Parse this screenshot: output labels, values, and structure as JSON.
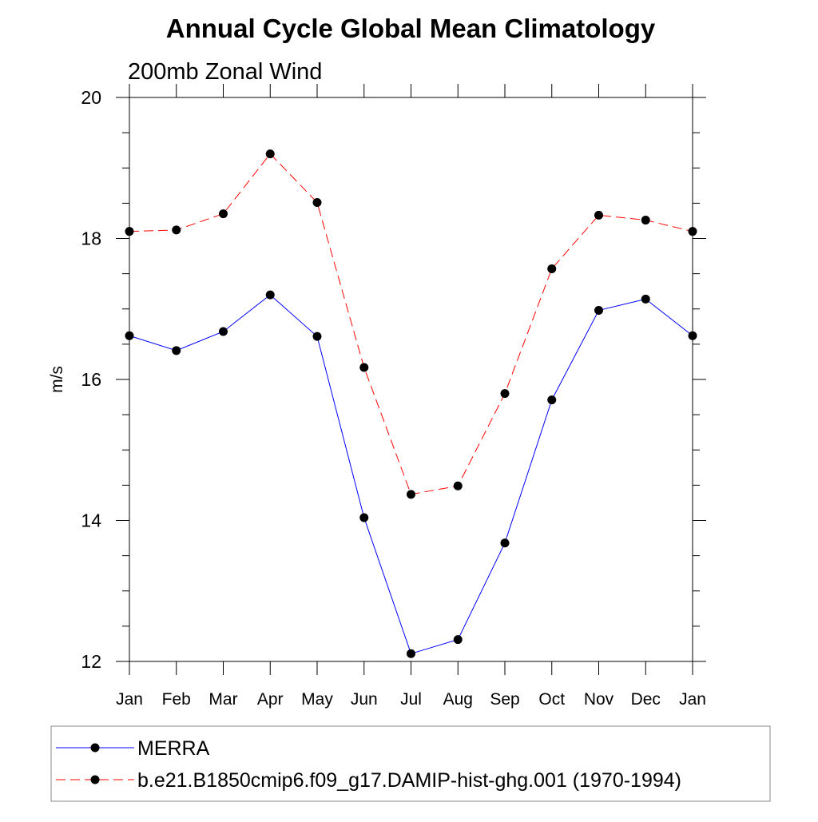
{
  "chart_data": {
    "type": "line",
    "title": "Annual Cycle Global Mean Climatology",
    "subtitle": "200mb Zonal Wind",
    "xlabel": "",
    "ylabel": "m/s",
    "categories": [
      "Jan",
      "Feb",
      "Mar",
      "Apr",
      "May",
      "Jun",
      "Jul",
      "Aug",
      "Sep",
      "Oct",
      "Nov",
      "Dec",
      "Jan"
    ],
    "ylim": [
      12,
      20
    ],
    "yticks": [
      12,
      14,
      16,
      18,
      20
    ],
    "grid": false,
    "legend_position": "bottom",
    "series": [
      {
        "name": "MERRA",
        "color": "#0000ff",
        "dash": "solid",
        "marker": "filled-circle",
        "values": [
          16.62,
          16.41,
          16.68,
          17.2,
          16.61,
          14.04,
          12.11,
          12.31,
          13.68,
          15.71,
          16.98,
          17.14,
          16.62
        ]
      },
      {
        "name": "b.e21.B1850cmip6.f09_g17.DAMIP-hist-ghg.001 (1970-1994)",
        "color": "#ff0000",
        "dash": "dashed",
        "marker": "filled-circle",
        "values": [
          18.1,
          18.12,
          18.35,
          19.2,
          18.51,
          16.17,
          14.37,
          14.49,
          15.8,
          17.57,
          18.33,
          18.26,
          18.1
        ]
      }
    ]
  }
}
